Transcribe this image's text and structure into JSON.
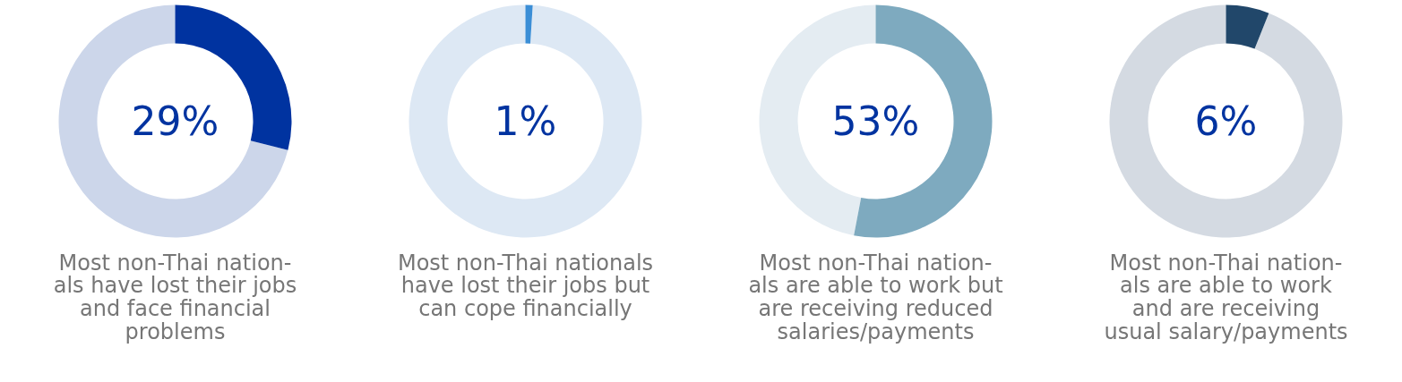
{
  "chart_data": [
    {
      "type": "donut",
      "title": "Most non-Thai nation-\nals have lost their jobs\nand face financial\nproblems",
      "categories": [
        null,
        null
      ],
      "values": [
        29,
        71
      ],
      "colors": [
        "#0033a0",
        "#ccd6ea"
      ],
      "annotations": [
        "29%"
      ]
    },
    {
      "type": "donut",
      "title": "Most non-Thai nationals\nhave lost their jobs but\ncan cope financially",
      "categories": [
        null,
        null
      ],
      "values": [
        1,
        99
      ],
      "colors": [
        "#3b8ed6",
        "#dde8f4"
      ],
      "annotations": [
        "1%"
      ]
    },
    {
      "type": "donut",
      "title": "Most non-Thai nation-\nals are able to work but\nare receiving reduced\nsalaries/payments",
      "categories": [
        null,
        null
      ],
      "values": [
        53,
        47
      ],
      "colors": [
        "#7eaabf",
        "#e4ecf2"
      ],
      "annotations": [
        "53%"
      ]
    },
    {
      "type": "donut",
      "title": "Most non-Thai nation-\nals are able to work\nand are receiving\nusual salary/payments",
      "categories": [
        null,
        null
      ],
      "values": [
        6,
        94
      ],
      "colors": [
        "#21476a",
        "#d4dae2"
      ],
      "annotations": [
        "6%"
      ]
    }
  ]
}
